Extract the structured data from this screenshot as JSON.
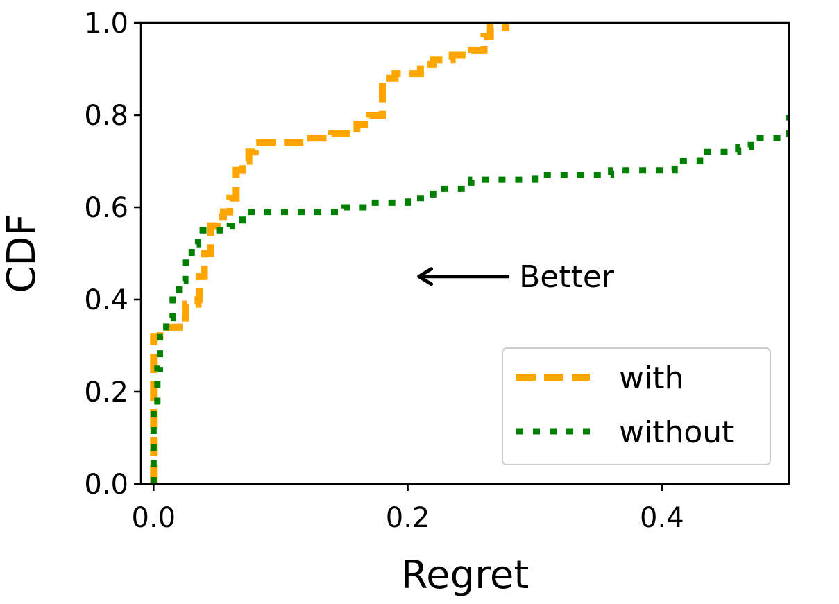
{
  "chart_data": {
    "type": "line",
    "subtype": "cdf-step",
    "xlabel": "Regret",
    "ylabel": "CDF",
    "xlim": [
      -0.01,
      0.5
    ],
    "ylim": [
      0.0,
      1.0
    ],
    "xticks": [
      0.0,
      0.2,
      0.4
    ],
    "xtick_labels": [
      "0.0",
      "0.2",
      "0.4"
    ],
    "yticks": [
      0.0,
      0.2,
      0.4,
      0.6,
      0.8,
      1.0
    ],
    "ytick_labels": [
      "0.0",
      "0.2",
      "0.4",
      "0.6",
      "0.8",
      "1.0"
    ],
    "grid": false,
    "legend_position": "bottom-right",
    "annotation": {
      "text": "Better",
      "arrow_from": [
        0.28,
        0.45
      ],
      "arrow_to": [
        0.2,
        0.45
      ]
    },
    "series": [
      {
        "name": "with",
        "color": "#FFA500",
        "style": "dashed",
        "points": [
          [
            0.0,
            0.0
          ],
          [
            0.0,
            0.32
          ],
          [
            0.005,
            0.34
          ],
          [
            0.02,
            0.36
          ],
          [
            0.025,
            0.39
          ],
          [
            0.035,
            0.4
          ],
          [
            0.036,
            0.45
          ],
          [
            0.04,
            0.5
          ],
          [
            0.045,
            0.56
          ],
          [
            0.05,
            0.58
          ],
          [
            0.055,
            0.59
          ],
          [
            0.06,
            0.62
          ],
          [
            0.065,
            0.68
          ],
          [
            0.07,
            0.7
          ],
          [
            0.075,
            0.72
          ],
          [
            0.08,
            0.74
          ],
          [
            0.09,
            0.74
          ],
          [
            0.11,
            0.74
          ],
          [
            0.12,
            0.75
          ],
          [
            0.14,
            0.76
          ],
          [
            0.16,
            0.78
          ],
          [
            0.17,
            0.8
          ],
          [
            0.178,
            0.8
          ],
          [
            0.18,
            0.88
          ],
          [
            0.19,
            0.89
          ],
          [
            0.21,
            0.91
          ],
          [
            0.22,
            0.92
          ],
          [
            0.235,
            0.93
          ],
          [
            0.25,
            0.94
          ],
          [
            0.26,
            0.97
          ],
          [
            0.265,
            0.99
          ],
          [
            0.28,
            0.99
          ]
        ]
      },
      {
        "name": "without",
        "color": "#008000",
        "style": "dotted",
        "points": [
          [
            0.0,
            0.0
          ],
          [
            0.0,
            0.16
          ],
          [
            0.003,
            0.25
          ],
          [
            0.005,
            0.32
          ],
          [
            0.01,
            0.36
          ],
          [
            0.015,
            0.4
          ],
          [
            0.02,
            0.44
          ],
          [
            0.025,
            0.48
          ],
          [
            0.03,
            0.52
          ],
          [
            0.035,
            0.55
          ],
          [
            0.06,
            0.56
          ],
          [
            0.07,
            0.59
          ],
          [
            0.15,
            0.6
          ],
          [
            0.17,
            0.61
          ],
          [
            0.2,
            0.62
          ],
          [
            0.22,
            0.64
          ],
          [
            0.25,
            0.66
          ],
          [
            0.28,
            0.66
          ],
          [
            0.3,
            0.67
          ],
          [
            0.35,
            0.67
          ],
          [
            0.36,
            0.68
          ],
          [
            0.39,
            0.68
          ],
          [
            0.41,
            0.7
          ],
          [
            0.43,
            0.72
          ],
          [
            0.46,
            0.73
          ],
          [
            0.47,
            0.75
          ],
          [
            0.5,
            0.8
          ]
        ]
      }
    ]
  }
}
